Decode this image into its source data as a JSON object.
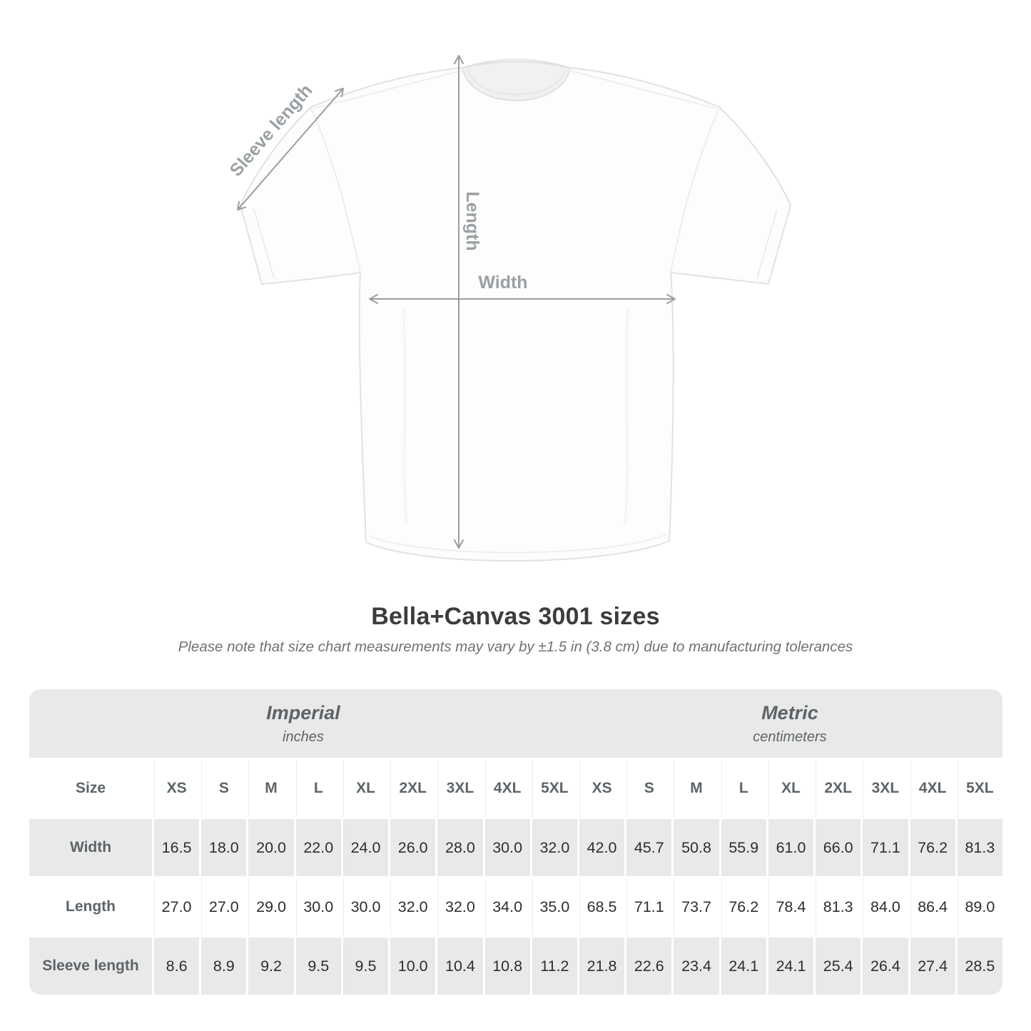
{
  "figure": {
    "labels": {
      "sleeve": "Sleeve length",
      "length": "Length",
      "width": "Width"
    },
    "arrow_color": "#9d9d9d",
    "label_color": "#9aa0a3"
  },
  "title": "Bella+Canvas 3001 sizes",
  "subtitle": "Please note that size chart measurements may vary by ±1.5 in (3.8 cm) due to manufacturing tolerances",
  "table": {
    "unit_groups": [
      {
        "name": "Imperial",
        "unit": "inches"
      },
      {
        "name": "Metric",
        "unit": "centimeters"
      }
    ],
    "corner_label": "Size",
    "sizes_imperial": [
      "XS",
      "S",
      "M",
      "L",
      "XL",
      "2XL",
      "3XL",
      "4XL",
      "5XL"
    ],
    "sizes_metric": [
      "XS",
      "S",
      "M",
      "L",
      "XL",
      "2XL",
      "3XL",
      "4XL",
      "5XL"
    ],
    "rows": [
      {
        "label": "Width",
        "imperial": [
          "16.5",
          "18.0",
          "20.0",
          "22.0",
          "24.0",
          "26.0",
          "28.0",
          "30.0",
          "32.0"
        ],
        "metric": [
          "42.0",
          "45.7",
          "50.8",
          "55.9",
          "61.0",
          "66.0",
          "71.1",
          "76.2",
          "81.3"
        ]
      },
      {
        "label": "Length",
        "imperial": [
          "27.0",
          "27.0",
          "29.0",
          "30.0",
          "30.0",
          "32.0",
          "32.0",
          "34.0",
          "35.0"
        ],
        "metric": [
          "68.5",
          "71.1",
          "73.7",
          "76.2",
          "78.4",
          "81.3",
          "84.0",
          "86.4",
          "89.0"
        ]
      },
      {
        "label": "Sleeve length",
        "imperial": [
          "8.6",
          "8.9",
          "9.2",
          "9.5",
          "9.5",
          "10.0",
          "10.4",
          "10.8",
          "11.2"
        ],
        "metric": [
          "21.8",
          "22.6",
          "23.4",
          "24.1",
          "24.1",
          "25.4",
          "26.4",
          "27.4",
          "28.5"
        ]
      }
    ],
    "colors": {
      "band_bg": "#e9e9e9",
      "shaded_row_bg": "#e9e9e9",
      "header_text": "#5d6468",
      "value_text": "#2c2e30"
    }
  },
  "chart_data": {
    "type": "table",
    "title": "Bella+Canvas 3001 sizes",
    "columns": [
      "Size",
      "XS",
      "S",
      "M",
      "L",
      "XL",
      "2XL",
      "3XL",
      "4XL",
      "5XL",
      "XS",
      "S",
      "M",
      "L",
      "XL",
      "2XL",
      "3XL",
      "4XL",
      "5XL"
    ],
    "unit_groups": [
      "Imperial (inches)",
      "Metric (centimeters)"
    ],
    "rows": [
      [
        "Width",
        16.5,
        18.0,
        20.0,
        22.0,
        24.0,
        26.0,
        28.0,
        30.0,
        32.0,
        42.0,
        45.7,
        50.8,
        55.9,
        61.0,
        66.0,
        71.1,
        76.2,
        81.3
      ],
      [
        "Length",
        27.0,
        27.0,
        29.0,
        30.0,
        30.0,
        32.0,
        32.0,
        34.0,
        35.0,
        68.5,
        71.1,
        73.7,
        76.2,
        78.4,
        81.3,
        84.0,
        86.4,
        89.0
      ],
      [
        "Sleeve length",
        8.6,
        8.9,
        9.2,
        9.5,
        9.5,
        10.0,
        10.4,
        10.8,
        11.2,
        21.8,
        22.6,
        23.4,
        24.1,
        24.1,
        25.4,
        26.4,
        27.4,
        28.5
      ]
    ]
  }
}
